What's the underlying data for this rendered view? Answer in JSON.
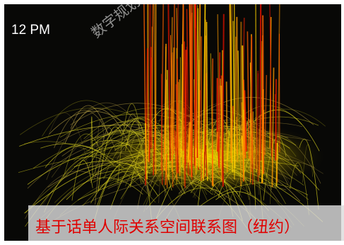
{
  "image": {
    "time_label": "12 PM",
    "watermark": "数字规划技术",
    "caption": "基于话单人际关系空间联系图（纽约）"
  }
}
